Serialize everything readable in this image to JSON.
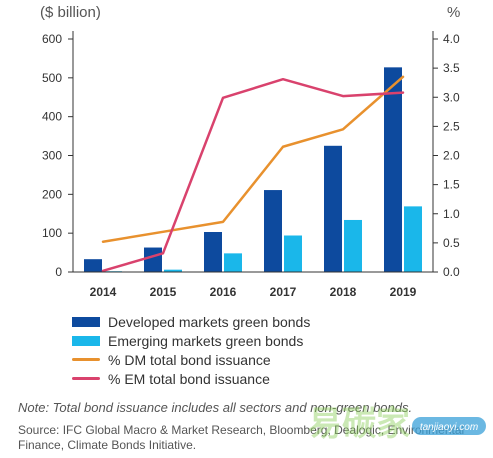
{
  "chart_data": {
    "type": "bar",
    "categories": [
      "2014",
      "2015",
      "2016",
      "2017",
      "2018",
      "2019"
    ],
    "y_left": {
      "label": "($ billion)",
      "ticks": [
        0,
        100,
        200,
        300,
        400,
        500,
        600
      ],
      "ylim": [
        0,
        600
      ]
    },
    "y_right": {
      "label": "%",
      "ticks": [
        "0.0",
        "0.5",
        "1.0",
        "1.5",
        "2.0",
        "2.5",
        "3.0",
        "3.5",
        "4.0"
      ],
      "ylim": [
        0,
        4
      ]
    },
    "bar_series": [
      {
        "name": "Developed markets green bonds",
        "color": "#0d4a9e",
        "values": [
          33,
          63,
          103,
          211,
          325,
          527
        ]
      },
      {
        "name": "Emerging markets green bonds",
        "color": "#1ab7ea",
        "values": [
          2,
          6,
          48,
          94,
          134,
          169
        ]
      }
    ],
    "line_series": [
      {
        "name": "% DM total bond issuance",
        "color": "#e8912e",
        "values": [
          0.52,
          0.69,
          0.86,
          2.15,
          2.45,
          3.35
        ]
      },
      {
        "name": "% EM total bond issuance",
        "color": "#d9426d",
        "values": [
          0.02,
          0.32,
          2.99,
          3.31,
          3.02,
          3.08
        ]
      }
    ],
    "grid": false,
    "legend_placement": "bottom"
  },
  "note": "Note: Total bond issuance includes all sectors and non-green bonds.",
  "source": "Source: IFC Global Macro & Market Research, Bloomberg, Dealogic, Environmental Finance, Climate Bonds Initiative.",
  "watermark": {
    "text": "易碳家",
    "badge": "tanjiaoyi.com"
  }
}
